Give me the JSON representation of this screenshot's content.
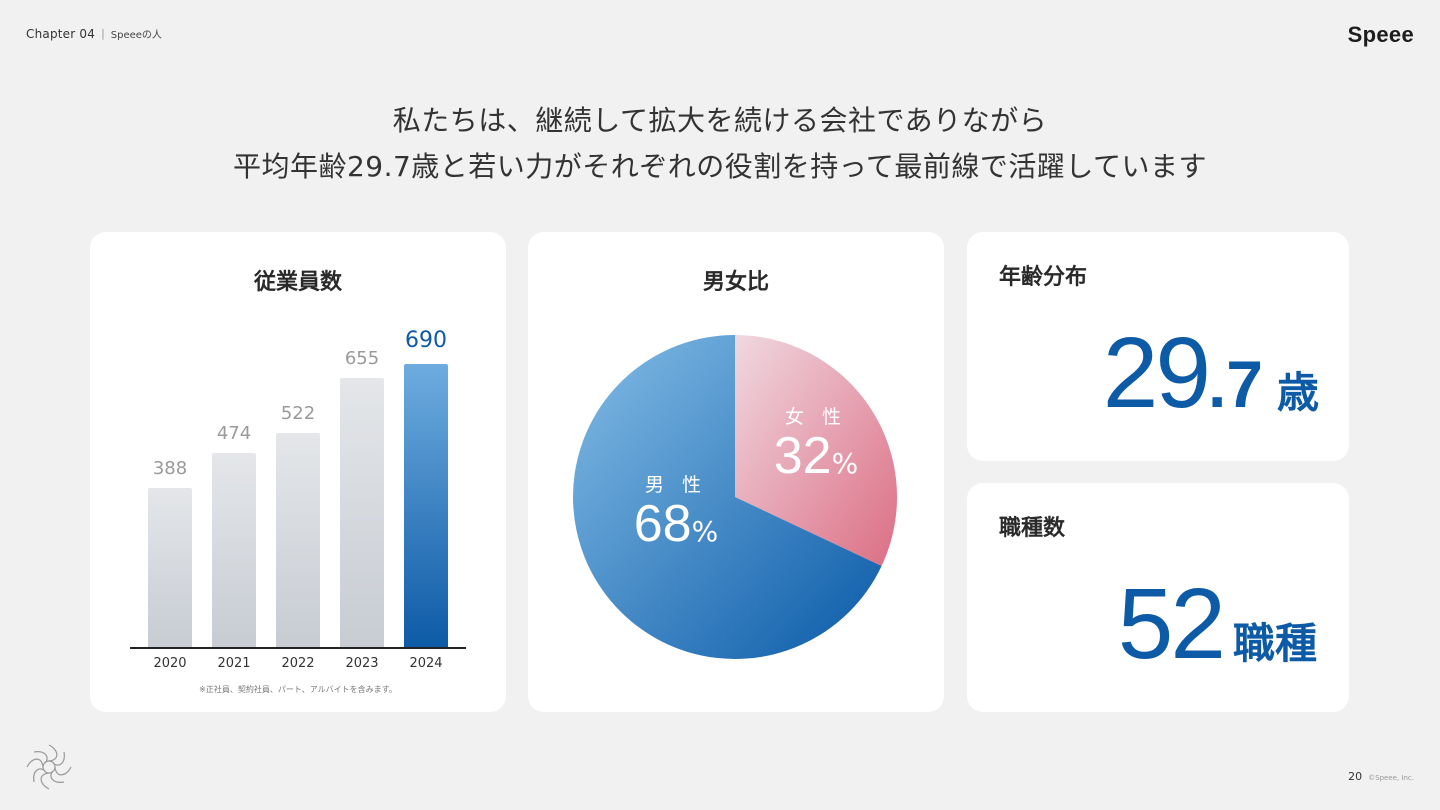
{
  "header": {
    "chapter": "Chapter 04",
    "separator": "|",
    "section": "Speeeの人"
  },
  "logo": "Speee",
  "headline": {
    "line1": "私たちは、継続して拡大を続ける会社でありながら",
    "line2": "平均年齢29.7歳と若い力がそれぞれの役割を持って最前線で活躍しています"
  },
  "employees": {
    "title": "従業員数",
    "footnote": "※正社員、契約社員、パート、アルバイトを含みます。",
    "chart_data": {
      "type": "bar",
      "categories": [
        "2020",
        "2021",
        "2022",
        "2023",
        "2024"
      ],
      "values": [
        388,
        474,
        522,
        655,
        690
      ],
      "value_labels": [
        "388",
        "474",
        "522",
        "655",
        "690"
      ],
      "highlight_index": 4,
      "colors": {
        "default": "#c7ccd3",
        "highlight": "#0d5aa6"
      }
    }
  },
  "gender": {
    "title": "男女比",
    "chart_data": {
      "type": "pie",
      "slices": [
        {
          "name": "女性",
          "label": "女 性",
          "value": 32,
          "value_label": "32",
          "color": "#e38a9c"
        },
        {
          "name": "男性",
          "label": "男 性",
          "value": 68,
          "value_label": "68",
          "color": "#2f7ec4"
        }
      ]
    },
    "percent_symbol": "%"
  },
  "age": {
    "title": "年齢分布",
    "value_int": "29",
    "value_dec": ".7",
    "unit": "歳"
  },
  "jobs": {
    "title": "職種数",
    "value": "52",
    "unit": "職種"
  },
  "footer": {
    "page": "20",
    "copyright": "©Speee, Inc."
  },
  "colors": {
    "accent": "#0d5aa6",
    "background": "#f1f1f1"
  }
}
